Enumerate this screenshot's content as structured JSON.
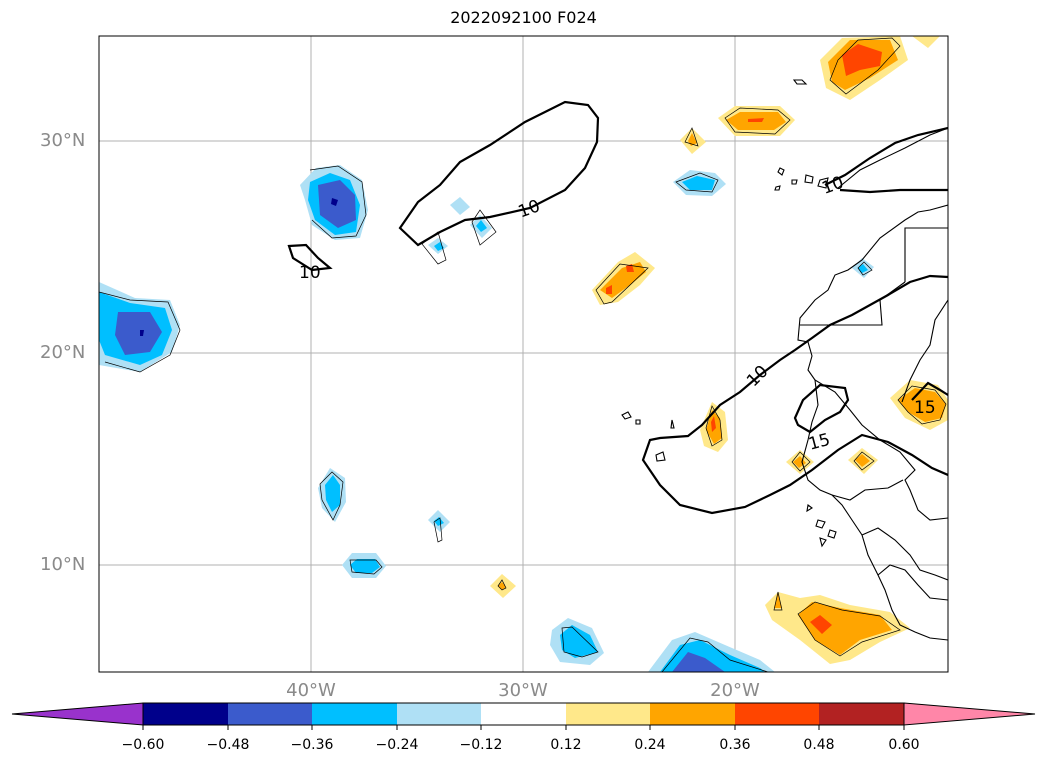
{
  "title": "2022092100 F024",
  "axes": {
    "lat_labels": [
      "30°N",
      "20°N",
      "10°N"
    ],
    "lon_labels": [
      "40°W",
      "30°W",
      "20°W"
    ]
  },
  "contour_labels": [
    "10",
    "10",
    "10",
    "10",
    "15",
    "15"
  ],
  "colorbar": {
    "ticks": [
      "−0.60",
      "−0.48",
      "−0.36",
      "−0.24",
      "−0.12",
      "0.12",
      "0.24",
      "0.36",
      "0.48",
      "0.60"
    ],
    "colors": [
      "#9932cc",
      "#00008b",
      "#3b5bcc",
      "#00bfff",
      "#afe0f5",
      "#ffffff",
      "#ffe88a",
      "#ffa500",
      "#ff4500",
      "#b22222",
      "#ff86a8"
    ]
  },
  "colors": {
    "grid": "#b0b0b0",
    "contour": "#000000",
    "axis_label": "#8a8a8a"
  }
}
